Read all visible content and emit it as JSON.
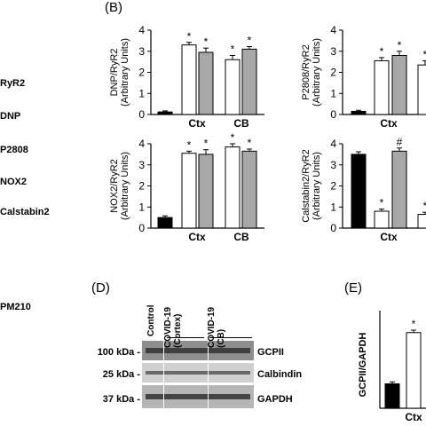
{
  "left_labels": [
    "RyR2",
    "DNP",
    "P2808",
    "NOX2",
    "Calstabin2",
    "PM210"
  ],
  "panel_labels": {
    "B": "(B)",
    "D": "(D)",
    "E": "(E)"
  },
  "colors": {
    "control": "#000000",
    "cortex": "#ffffff",
    "cb": "#a8a8a8",
    "stroke": "#000000"
  },
  "chart_data": [
    {
      "type": "bar",
      "id": "dnp",
      "ylabel": "DNP/RyR2",
      "ylabel2": "(Arbitrary Units)",
      "ylim": [
        0,
        4
      ],
      "yticks": [
        "0",
        "1",
        "2",
        "3",
        "4"
      ],
      "categories": [
        "",
        "Ctx",
        "CB"
      ],
      "series": [
        {
          "values": [
            0.12,
            3.3,
            2.95
          ],
          "errors": [
            0.05,
            0.12,
            0.2
          ],
          "colors": [
            "control",
            "cortex",
            "cb"
          ],
          "marks": [
            "",
            "*",
            "*"
          ]
        },
        {
          "values": [
            null,
            2.6,
            3.1
          ],
          "errors": [
            null,
            0.2,
            0.12
          ],
          "colors": [
            null,
            "cortex",
            "cb"
          ],
          "marks": [
            null,
            "*",
            "*"
          ]
        }
      ]
    },
    {
      "type": "bar",
      "id": "p2808",
      "ylabel": "P2808/RyR2",
      "ylabel2": "(Arbitrary Units)",
      "ylim": [
        0,
        4
      ],
      "yticks": [
        "0",
        "1",
        "2",
        "3",
        "4"
      ],
      "categories": [
        "",
        "Ctx",
        ""
      ],
      "bars": [
        {
          "value": 0.15,
          "error": 0.05,
          "color": "control",
          "mark": ""
        },
        {
          "value": 2.55,
          "error": 0.15,
          "color": "cortex",
          "mark": "*"
        },
        {
          "value": 2.8,
          "error": 0.2,
          "color": "cb",
          "mark": "*"
        },
        {
          "value": 2.35,
          "error": 0.2,
          "color": "cortex",
          "mark": "*"
        }
      ]
    },
    {
      "type": "bar",
      "id": "nox2",
      "ylabel": "NOX2/RyR2",
      "ylabel2": "(Arbitrary Units)",
      "ylim": [
        0,
        4
      ],
      "yticks": [
        "0",
        "1",
        "2",
        "3",
        "4"
      ],
      "categories": [
        "",
        "Ctx",
        "CB"
      ],
      "bars": [
        {
          "value": 0.5,
          "error": 0.08,
          "color": "control",
          "mark": ""
        },
        {
          "value": 3.55,
          "error": 0.1,
          "color": "cortex",
          "mark": "*"
        },
        {
          "value": 3.5,
          "error": 0.22,
          "color": "cb",
          "mark": "*"
        },
        {
          "value": 3.85,
          "error": 0.15,
          "color": "cortex",
          "mark": "*"
        },
        {
          "value": 3.65,
          "error": 0.1,
          "color": "cb",
          "mark": "*"
        }
      ]
    },
    {
      "type": "bar",
      "id": "calstabin2",
      "ylabel": "Calstabin2/RyR2",
      "ylabel2": "(Arbitrary Units)",
      "ylim": [
        0,
        4
      ],
      "yticks": [
        "0",
        "1",
        "2",
        "3",
        "4"
      ],
      "categories": [
        "",
        "Ctx",
        ""
      ],
      "bars": [
        {
          "value": 3.5,
          "error": 0.12,
          "color": "control",
          "mark": ""
        },
        {
          "value": 0.8,
          "error": 0.1,
          "color": "cortex",
          "mark": "*"
        },
        {
          "value": 3.65,
          "error": 0.15,
          "color": "cb",
          "mark": "#"
        },
        {
          "value": 0.65,
          "error": 0.1,
          "color": "cortex",
          "mark": "*"
        }
      ]
    },
    {
      "type": "bar",
      "id": "gcpii",
      "ylabel": "GCPII/GAPDH",
      "ylim": [
        0,
        4
      ],
      "categories": [
        "",
        "Ctx"
      ],
      "bars": [
        {
          "value": 1.0,
          "error": 0.08,
          "color": "control",
          "mark": ""
        },
        {
          "value": 3.1,
          "error": 0.1,
          "color": "cortex",
          "mark": "*"
        }
      ]
    }
  ],
  "blot": {
    "lanes": [
      "Control",
      "COVID-19\n(Cortex)",
      "COVID-19\n(CB)"
    ],
    "bands": [
      {
        "mw": "100 kDa -",
        "name": "GCPII"
      },
      {
        "mw": "25 kDa -",
        "name": "Calbindin"
      },
      {
        "mw": "37 kDa -",
        "name": "GAPDH"
      }
    ]
  }
}
